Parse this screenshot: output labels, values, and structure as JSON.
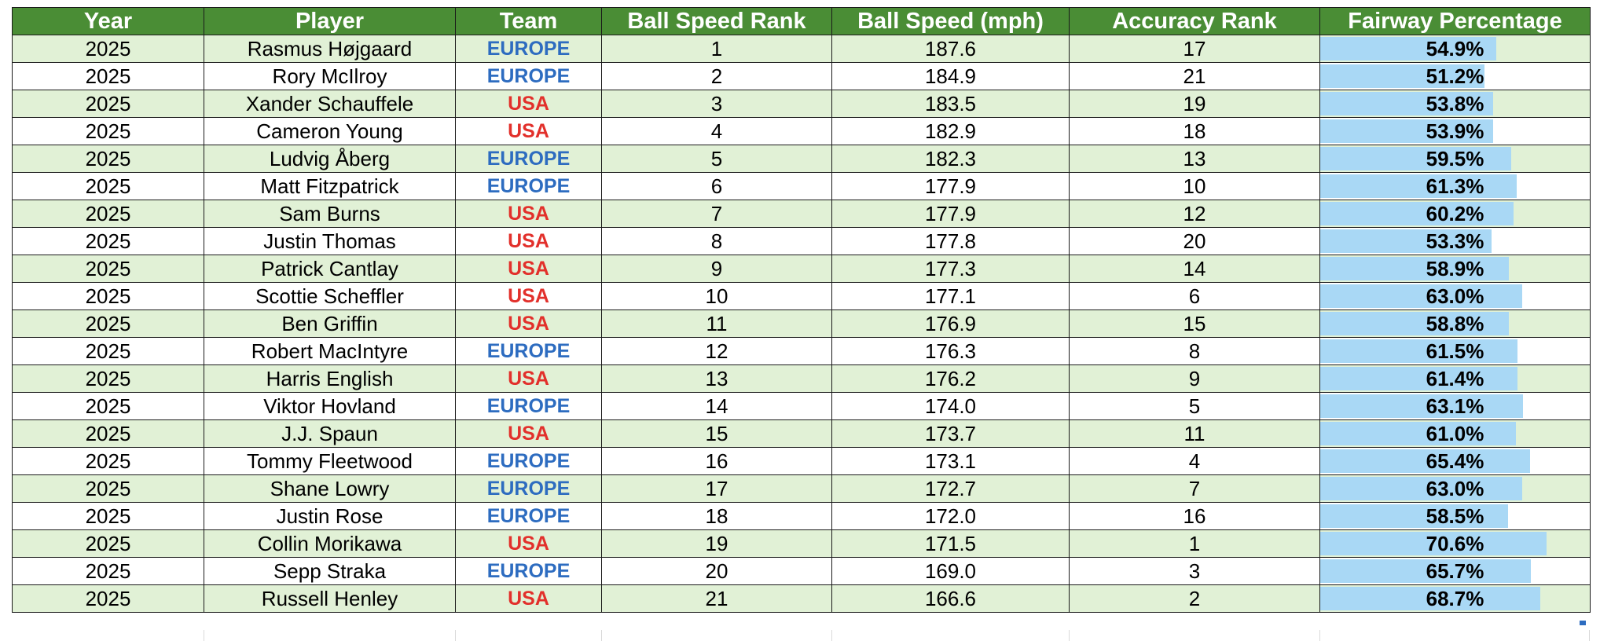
{
  "table": {
    "headers": [
      "Year",
      "Player",
      "Team",
      "Ball Speed Rank",
      "Ball Speed (mph)",
      "Accuracy Rank",
      "Fairway Percentage"
    ],
    "fairway_bar_color": "#a9d8f5",
    "fairway_bar_max": 0.706,
    "team_colors": {
      "EUROPE": "#2d6cc0",
      "USA": "#e2302b"
    },
    "rows": [
      {
        "year": "2025",
        "player": "Rasmus Højgaard",
        "team": "EUROPE",
        "ball_speed_rank": "1",
        "ball_speed": "187.6",
        "accuracy_rank": "17",
        "fairway_pct": "54.9%",
        "fairway_value": 0.549
      },
      {
        "year": "2025",
        "player": "Rory McIlroy",
        "team": "EUROPE",
        "ball_speed_rank": "2",
        "ball_speed": "184.9",
        "accuracy_rank": "21",
        "fairway_pct": "51.2%",
        "fairway_value": 0.512
      },
      {
        "year": "2025",
        "player": "Xander Schauffele",
        "team": "USA",
        "ball_speed_rank": "3",
        "ball_speed": "183.5",
        "accuracy_rank": "19",
        "fairway_pct": "53.8%",
        "fairway_value": 0.538
      },
      {
        "year": "2025",
        "player": "Cameron Young",
        "team": "USA",
        "ball_speed_rank": "4",
        "ball_speed": "182.9",
        "accuracy_rank": "18",
        "fairway_pct": "53.9%",
        "fairway_value": 0.539
      },
      {
        "year": "2025",
        "player": "Ludvig Åberg",
        "team": "EUROPE",
        "ball_speed_rank": "5",
        "ball_speed": "182.3",
        "accuracy_rank": "13",
        "fairway_pct": "59.5%",
        "fairway_value": 0.595
      },
      {
        "year": "2025",
        "player": "Matt Fitzpatrick",
        "team": "EUROPE",
        "ball_speed_rank": "6",
        "ball_speed": "177.9",
        "accuracy_rank": "10",
        "fairway_pct": "61.3%",
        "fairway_value": 0.613
      },
      {
        "year": "2025",
        "player": "Sam Burns",
        "team": "USA",
        "ball_speed_rank": "7",
        "ball_speed": "177.9",
        "accuracy_rank": "12",
        "fairway_pct": "60.2%",
        "fairway_value": 0.602
      },
      {
        "year": "2025",
        "player": "Justin Thomas",
        "team": "USA",
        "ball_speed_rank": "8",
        "ball_speed": "177.8",
        "accuracy_rank": "20",
        "fairway_pct": "53.3%",
        "fairway_value": 0.533
      },
      {
        "year": "2025",
        "player": "Patrick Cantlay",
        "team": "USA",
        "ball_speed_rank": "9",
        "ball_speed": "177.3",
        "accuracy_rank": "14",
        "fairway_pct": "58.9%",
        "fairway_value": 0.589
      },
      {
        "year": "2025",
        "player": "Scottie Scheffler",
        "team": "USA",
        "ball_speed_rank": "10",
        "ball_speed": "177.1",
        "accuracy_rank": "6",
        "fairway_pct": "63.0%",
        "fairway_value": 0.63
      },
      {
        "year": "2025",
        "player": "Ben Griffin",
        "team": "USA",
        "ball_speed_rank": "11",
        "ball_speed": "176.9",
        "accuracy_rank": "15",
        "fairway_pct": "58.8%",
        "fairway_value": 0.588
      },
      {
        "year": "2025",
        "player": "Robert MacIntyre",
        "team": "EUROPE",
        "ball_speed_rank": "12",
        "ball_speed": "176.3",
        "accuracy_rank": "8",
        "fairway_pct": "61.5%",
        "fairway_value": 0.615
      },
      {
        "year": "2025",
        "player": "Harris English",
        "team": "USA",
        "ball_speed_rank": "13",
        "ball_speed": "176.2",
        "accuracy_rank": "9",
        "fairway_pct": "61.4%",
        "fairway_value": 0.614
      },
      {
        "year": "2025",
        "player": "Viktor Hovland",
        "team": "EUROPE",
        "ball_speed_rank": "14",
        "ball_speed": "174.0",
        "accuracy_rank": "5",
        "fairway_pct": "63.1%",
        "fairway_value": 0.631
      },
      {
        "year": "2025",
        "player": "J.J. Spaun",
        "team": "USA",
        "ball_speed_rank": "15",
        "ball_speed": "173.7",
        "accuracy_rank": "11",
        "fairway_pct": "61.0%",
        "fairway_value": 0.61
      },
      {
        "year": "2025",
        "player": "Tommy Fleetwood",
        "team": "EUROPE",
        "ball_speed_rank": "16",
        "ball_speed": "173.1",
        "accuracy_rank": "4",
        "fairway_pct": "65.4%",
        "fairway_value": 0.654
      },
      {
        "year": "2025",
        "player": "Shane Lowry",
        "team": "EUROPE",
        "ball_speed_rank": "17",
        "ball_speed": "172.7",
        "accuracy_rank": "7",
        "fairway_pct": "63.0%",
        "fairway_value": 0.63
      },
      {
        "year": "2025",
        "player": "Justin Rose",
        "team": "EUROPE",
        "ball_speed_rank": "18",
        "ball_speed": "172.0",
        "accuracy_rank": "16",
        "fairway_pct": "58.5%",
        "fairway_value": 0.585
      },
      {
        "year": "2025",
        "player": "Collin Morikawa",
        "team": "USA",
        "ball_speed_rank": "19",
        "ball_speed": "171.5",
        "accuracy_rank": "1",
        "fairway_pct": "70.6%",
        "fairway_value": 0.706
      },
      {
        "year": "2025",
        "player": "Sepp Straka",
        "team": "EUROPE",
        "ball_speed_rank": "20",
        "ball_speed": "169.0",
        "accuracy_rank": "3",
        "fairway_pct": "65.7%",
        "fairway_value": 0.657
      },
      {
        "year": "2025",
        "player": "Russell Henley",
        "team": "USA",
        "ball_speed_rank": "21",
        "ball_speed": "166.6",
        "accuracy_rank": "2",
        "fairway_pct": "68.7%",
        "fairway_value": 0.687
      }
    ]
  }
}
